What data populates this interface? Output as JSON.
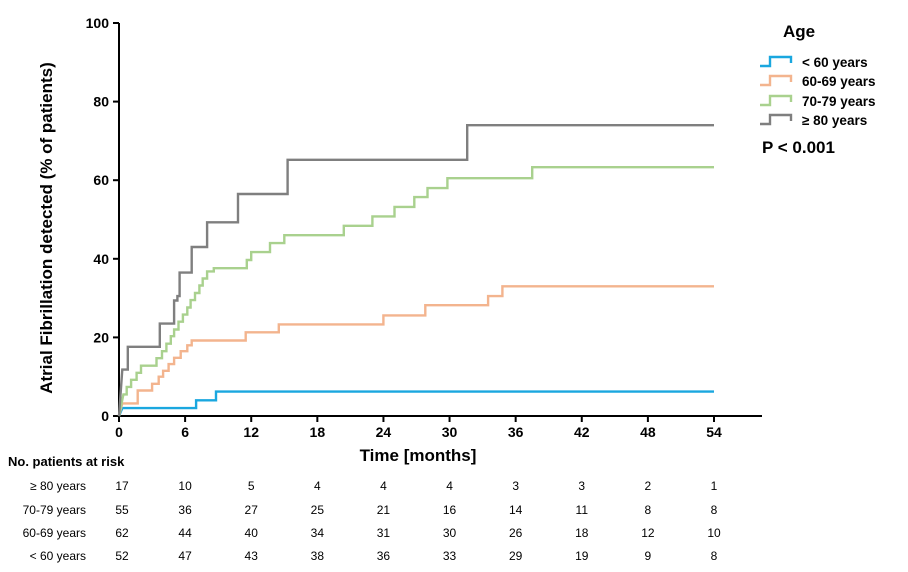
{
  "chart_data": {
    "type": "line",
    "step": true,
    "xlabel": "Time [months]",
    "ylabel": "Atrial Fibrillation detected (% of patients)",
    "xlim": [
      0,
      54
    ],
    "ylim": [
      0,
      100
    ],
    "xticks": [
      0,
      6,
      12,
      18,
      24,
      30,
      36,
      42,
      48,
      54
    ],
    "yticks": [
      0,
      20,
      40,
      60,
      80,
      100
    ],
    "legend_title": "Age",
    "legend_position": "top-right",
    "annotation": "P < 0.001",
    "grid": false,
    "series": [
      {
        "name": "< 60 years",
        "color": "#1aa7df",
        "points": [
          [
            0,
            0
          ],
          [
            0.3,
            2
          ],
          [
            7,
            2
          ],
          [
            7,
            4
          ],
          [
            8.8,
            4
          ],
          [
            8.8,
            6.2
          ],
          [
            54,
            6.2
          ]
        ]
      },
      {
        "name": "60-69 years",
        "color": "#f3b48e",
        "points": [
          [
            0,
            0
          ],
          [
            0.3,
            3.2
          ],
          [
            1.7,
            3.2
          ],
          [
            1.7,
            6.5
          ],
          [
            3,
            6.5
          ],
          [
            3,
            8.2
          ],
          [
            3.6,
            8.2
          ],
          [
            3.6,
            10
          ],
          [
            4,
            10
          ],
          [
            4,
            11.5
          ],
          [
            4.5,
            11.5
          ],
          [
            4.5,
            13.2
          ],
          [
            5,
            13.2
          ],
          [
            5,
            14.8
          ],
          [
            5.6,
            14.8
          ],
          [
            5.6,
            16.5
          ],
          [
            6.2,
            16.5
          ],
          [
            6.2,
            18
          ],
          [
            6.6,
            18
          ],
          [
            6.6,
            19.2
          ],
          [
            11.5,
            19.2
          ],
          [
            11.5,
            21.3
          ],
          [
            14.5,
            21.3
          ],
          [
            14.5,
            23.3
          ],
          [
            24,
            23.3
          ],
          [
            24,
            25.6
          ],
          [
            27.8,
            25.6
          ],
          [
            27.8,
            28.2
          ],
          [
            33.5,
            28.2
          ],
          [
            33.5,
            30.5
          ],
          [
            34.8,
            30.5
          ],
          [
            34.8,
            33
          ],
          [
            54,
            33
          ]
        ]
      },
      {
        "name": "70-79 years",
        "color": "#a9d18e",
        "points": [
          [
            0,
            0
          ],
          [
            0.4,
            5.5
          ],
          [
            0.7,
            5.5
          ],
          [
            0.7,
            7.4
          ],
          [
            1.1,
            7.4
          ],
          [
            1.1,
            9.2
          ],
          [
            1.6,
            9.2
          ],
          [
            1.6,
            11
          ],
          [
            2,
            11
          ],
          [
            2,
            12.8
          ],
          [
            3.4,
            12.8
          ],
          [
            3.4,
            14.7
          ],
          [
            3.9,
            14.7
          ],
          [
            3.9,
            16.5
          ],
          [
            4.3,
            16.5
          ],
          [
            4.3,
            18.4
          ],
          [
            4.7,
            18.4
          ],
          [
            4.7,
            20.3
          ],
          [
            5,
            20.3
          ],
          [
            5,
            22
          ],
          [
            5.4,
            22
          ],
          [
            5.4,
            24
          ],
          [
            5.8,
            24
          ],
          [
            5.8,
            25.8
          ],
          [
            6.2,
            25.8
          ],
          [
            6.2,
            27.6
          ],
          [
            6.5,
            27.6
          ],
          [
            6.5,
            29.5
          ],
          [
            6.9,
            29.5
          ],
          [
            6.9,
            31.3
          ],
          [
            7.3,
            31.3
          ],
          [
            7.3,
            33.2
          ],
          [
            7.6,
            33.2
          ],
          [
            7.6,
            35
          ],
          [
            8,
            35
          ],
          [
            8,
            36.8
          ],
          [
            8.6,
            36.8
          ],
          [
            8.6,
            37.6
          ],
          [
            11.6,
            37.6
          ],
          [
            11.6,
            39.7
          ],
          [
            12,
            39.7
          ],
          [
            12,
            41.7
          ],
          [
            13.7,
            41.7
          ],
          [
            13.7,
            44
          ],
          [
            15,
            44
          ],
          [
            15,
            46
          ],
          [
            20.4,
            46
          ],
          [
            20.4,
            48.4
          ],
          [
            23,
            48.4
          ],
          [
            23,
            50.8
          ],
          [
            25,
            50.8
          ],
          [
            25,
            53.2
          ],
          [
            26.8,
            53.2
          ],
          [
            26.8,
            55.7
          ],
          [
            28,
            55.7
          ],
          [
            28,
            58
          ],
          [
            29.8,
            58
          ],
          [
            29.8,
            60.5
          ],
          [
            37.5,
            60.5
          ],
          [
            37.5,
            63.3
          ],
          [
            54,
            63.3
          ]
        ]
      },
      {
        "name": "≥ 80 years",
        "color": "#7f7f7f",
        "points": [
          [
            0,
            0
          ],
          [
            0.3,
            11.8
          ],
          [
            0.8,
            11.8
          ],
          [
            0.8,
            17.6
          ],
          [
            3.7,
            17.6
          ],
          [
            3.7,
            23.5
          ],
          [
            5,
            23.5
          ],
          [
            5,
            29.4
          ],
          [
            5.3,
            29.4
          ],
          [
            5.3,
            30.5
          ],
          [
            5.5,
            30.5
          ],
          [
            5.5,
            36.5
          ],
          [
            6.6,
            36.5
          ],
          [
            6.6,
            43
          ],
          [
            8,
            43
          ],
          [
            8,
            49.3
          ],
          [
            10.8,
            49.3
          ],
          [
            10.8,
            56.5
          ],
          [
            15.3,
            56.5
          ],
          [
            15.3,
            65.2
          ],
          [
            31.6,
            65.2
          ],
          [
            31.6,
            74
          ],
          [
            54,
            74
          ]
        ]
      }
    ]
  },
  "risk_table": {
    "title": "No. patients at risk",
    "times": [
      0,
      6,
      12,
      18,
      24,
      30,
      36,
      42,
      48,
      54
    ],
    "rows": [
      {
        "label": "≥ 80 years",
        "values": [
          "17",
          "10",
          "5",
          "4",
          "4",
          "4",
          "3",
          "3",
          "2",
          "1"
        ]
      },
      {
        "label": "70-79 years",
        "values": [
          "55",
          "36",
          "27",
          "25",
          "21",
          "16",
          "14",
          "11",
          "8",
          "8"
        ]
      },
      {
        "label": "60-69 years",
        "values": [
          "62",
          "44",
          "40",
          "34",
          "31",
          "30",
          "26",
          "18",
          "12",
          "10"
        ]
      },
      {
        "label": "< 60 years",
        "values": [
          "52",
          "47",
          "43",
          "38",
          "36",
          "33",
          "29",
          "19",
          "9",
          "8"
        ]
      }
    ]
  }
}
